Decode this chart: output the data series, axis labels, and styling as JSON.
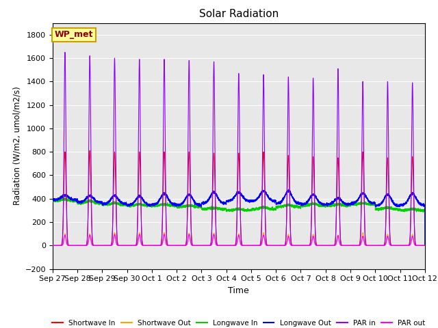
{
  "title": "Solar Radiation",
  "xlabel": "Time",
  "ylabel": "Radiation (W/m2, umol/m2/s)",
  "ylim": [
    -200,
    1900
  ],
  "yticks": [
    -200,
    0,
    200,
    400,
    600,
    800,
    1000,
    1200,
    1400,
    1600,
    1800
  ],
  "x_labels": [
    "Sep 27",
    "Sep 28",
    "Sep 29",
    "Sep 30",
    "Oct 1",
    "Oct 2",
    "Oct 3",
    "Oct 4",
    "Oct 5",
    "Oct 6",
    "Oct 7",
    "Oct 8",
    "Oct 9",
    "Oct 10",
    "Oct 11",
    "Oct 12"
  ],
  "annotation_text": "WP_met",
  "annotation_color": "#8B0000",
  "annotation_bg": "#FFFF99",
  "annotation_border": "#C8A000",
  "colors": {
    "shortwave_in": "#FF0000",
    "shortwave_out": "#FFA500",
    "longwave_in": "#00CC00",
    "longwave_out": "#0000FF",
    "par_in": "#8B00FF",
    "par_out": "#FF00FF"
  },
  "bg_color": "#E8E8E8",
  "fig_bg": "#FFFFFF",
  "n_days": 15,
  "shortwave_in_peaks": [
    800,
    810,
    800,
    800,
    800,
    800,
    790,
    790,
    800,
    770,
    760,
    750,
    800,
    750,
    760
  ],
  "shortwave_out_peaks": [
    100,
    100,
    110,
    110,
    110,
    105,
    105,
    100,
    110,
    95,
    95,
    90,
    110,
    95,
    95
  ],
  "longwave_in_base": [
    380,
    360,
    350,
    340,
    340,
    330,
    310,
    300,
    310,
    330,
    340,
    340,
    350,
    310,
    300
  ],
  "longwave_in_day": [
    395,
    382,
    362,
    352,
    352,
    342,
    322,
    312,
    327,
    347,
    358,
    352,
    362,
    322,
    312
  ],
  "longwave_out_base": [
    390,
    370,
    355,
    345,
    350,
    345,
    360,
    380,
    380,
    360,
    350,
    350,
    360,
    340,
    345
  ],
  "longwave_out_day": [
    430,
    425,
    425,
    420,
    445,
    435,
    455,
    455,
    465,
    465,
    435,
    405,
    445,
    435,
    445
  ],
  "par_in_peaks": [
    1650,
    1620,
    1600,
    1590,
    1590,
    1580,
    1570,
    1470,
    1460,
    1440,
    1430,
    1510,
    1400,
    1400,
    1390
  ],
  "par_out_peaks": [
    90,
    90,
    95,
    95,
    95,
    95,
    95,
    90,
    90,
    80,
    80,
    85,
    80,
    80,
    80
  ]
}
